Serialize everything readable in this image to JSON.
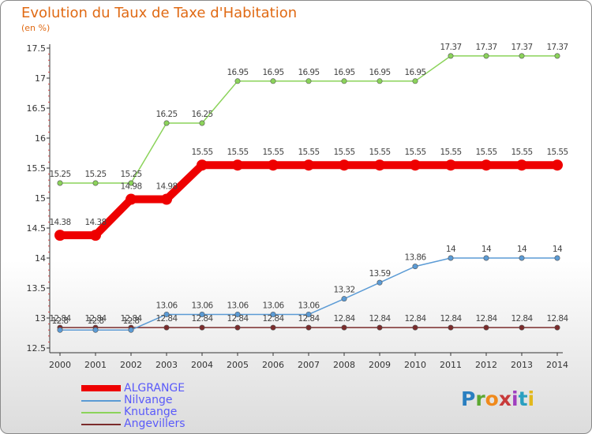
{
  "chart_data": {
    "type": "line",
    "title": "Evolution du Taux de Taxe d'Habitation",
    "subtitle": "(en %)",
    "x": [
      "2000",
      "2001",
      "2002",
      "2003",
      "2004",
      "2005",
      "2006",
      "2007",
      "2008",
      "2009",
      "2010",
      "2011",
      "2012",
      "2013",
      "2014"
    ],
    "ylim": [
      12.5,
      17.5
    ],
    "yticks": [
      "12.5",
      "13",
      "13.5",
      "14",
      "14.5",
      "15",
      "15.5",
      "16",
      "16.5",
      "17",
      "17.5"
    ],
    "series": [
      {
        "name": "ALGRANGE",
        "color": "#ee0000",
        "values": [
          14.38,
          14.38,
          14.98,
          14.98,
          15.55,
          15.55,
          15.55,
          15.55,
          15.55,
          15.55,
          15.55,
          15.55,
          15.55,
          15.55,
          15.55
        ],
        "labels": [
          "14.38",
          "14.38",
          "14.98",
          "14.98",
          "15.55",
          "15.55",
          "15.55",
          "15.55",
          "15.55",
          "15.55",
          "15.55",
          "15.55",
          "15.55",
          "15.55",
          "15.55"
        ]
      },
      {
        "name": "Nilvange",
        "color": "#5b9bd5",
        "values": [
          12.8,
          12.8,
          12.8,
          13.06,
          13.06,
          13.06,
          13.06,
          13.06,
          13.32,
          13.59,
          13.86,
          14,
          14,
          14,
          14
        ],
        "labels": [
          "12.8",
          "12.8",
          "12.8",
          "13.06",
          "13.06",
          "13.06",
          "13.06",
          "13.06",
          "13.32",
          "13.59",
          "13.86",
          "14",
          "14",
          "14",
          "14"
        ]
      },
      {
        "name": "Knutange",
        "color": "#8bd35a",
        "values": [
          15.25,
          15.25,
          15.25,
          16.25,
          16.25,
          16.95,
          16.95,
          16.95,
          16.95,
          16.95,
          16.95,
          17.37,
          17.37,
          17.37,
          17.37
        ],
        "labels": [
          "15.25",
          "15.25",
          "15.25",
          "16.25",
          "16.25",
          "16.95",
          "16.95",
          "16.95",
          "16.95",
          "16.95",
          "16.95",
          "17.37",
          "17.37",
          "17.37",
          "17.37"
        ]
      },
      {
        "name": "Angevillers",
        "color": "#7b2c2c",
        "values": [
          12.84,
          12.84,
          12.84,
          12.84,
          12.84,
          12.84,
          12.84,
          12.84,
          12.84,
          12.84,
          12.84,
          12.84,
          12.84,
          12.84,
          12.84
        ],
        "labels": [
          "12.84",
          "12.84",
          "12.84",
          "12.84",
          "12.84",
          "12.84",
          "12.84",
          "12.84",
          "12.84",
          "12.84",
          "12.84",
          "12.84",
          "12.84",
          "12.84",
          "12.84"
        ]
      }
    ],
    "grid": false,
    "legend_position": "bottom-left"
  },
  "logo": {
    "letters": [
      "P",
      "r",
      "o",
      "x",
      "i",
      "t",
      "i"
    ]
  }
}
